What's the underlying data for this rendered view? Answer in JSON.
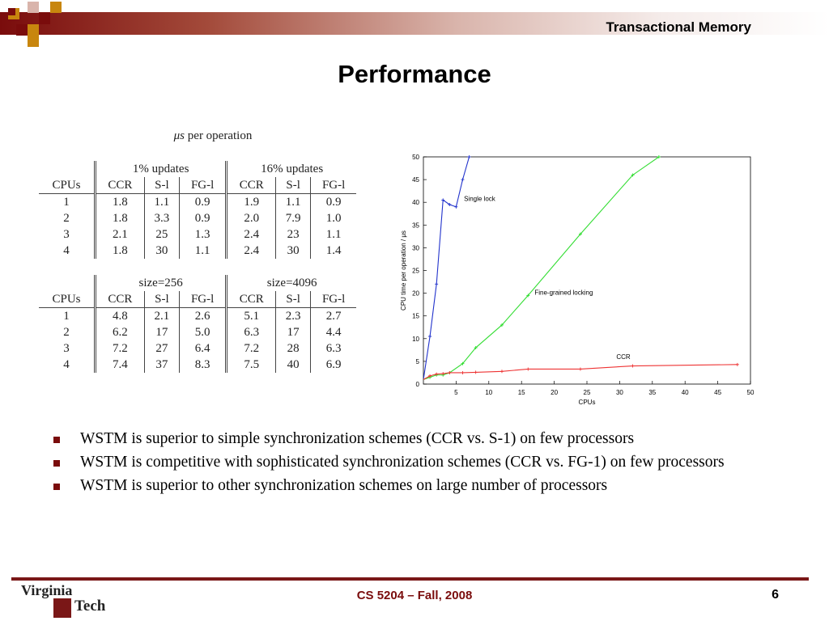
{
  "header": {
    "title": "Transactional Memory"
  },
  "slide": {
    "title": "Performance"
  },
  "table": {
    "caption_prefix": "μs",
    "caption_suffix": " per operation",
    "block1": {
      "group1": "1% updates",
      "group2": "16% updates",
      "columns": [
        "CPUs",
        "CCR",
        "S-l",
        "FG-l",
        "CCR",
        "S-l",
        "FG-l"
      ],
      "rows": [
        [
          "1",
          "1.8",
          "1.1",
          "0.9",
          "1.9",
          "1.1",
          "0.9"
        ],
        [
          "2",
          "1.8",
          "3.3",
          "0.9",
          "2.0",
          "7.9",
          "1.0"
        ],
        [
          "3",
          "2.1",
          "25",
          "1.3",
          "2.4",
          "23",
          "1.1"
        ],
        [
          "4",
          "1.8",
          "30",
          "1.1",
          "2.4",
          "30",
          "1.4"
        ]
      ]
    },
    "block2": {
      "group1": "size=256",
      "group2": "size=4096",
      "columns": [
        "CPUs",
        "CCR",
        "S-l",
        "FG-l",
        "CCR",
        "S-l",
        "FG-l"
      ],
      "rows": [
        [
          "1",
          "4.8",
          "2.1",
          "2.6",
          "5.1",
          "2.3",
          "2.7"
        ],
        [
          "2",
          "6.2",
          "17",
          "5.0",
          "6.3",
          "17",
          "4.4"
        ],
        [
          "3",
          "7.2",
          "27",
          "6.4",
          "7.2",
          "28",
          "6.3"
        ],
        [
          "4",
          "7.4",
          "37",
          "8.3",
          "7.5",
          "40",
          "6.9"
        ]
      ]
    }
  },
  "chart_data": {
    "type": "line",
    "xlabel": "CPUs",
    "ylabel": "CPU time per operation / μs",
    "xlim": [
      0,
      50
    ],
    "ylim": [
      0,
      50
    ],
    "xticks": [
      5,
      10,
      15,
      20,
      25,
      30,
      35,
      40,
      45,
      50
    ],
    "yticks": [
      0,
      5,
      10,
      15,
      20,
      25,
      30,
      35,
      40,
      45,
      50
    ],
    "series": [
      {
        "name": "Single lock",
        "color": "#2233cc",
        "x": [
          0,
          1,
          2,
          3,
          4,
          5,
          6,
          7
        ],
        "y": [
          1,
          10.5,
          22,
          40.5,
          39.5,
          39,
          45,
          50
        ]
      },
      {
        "name": "Fine-grained locking",
        "color": "#33dd33",
        "x": [
          0,
          1,
          2,
          3,
          4,
          6,
          8,
          12,
          16,
          24,
          32,
          36
        ],
        "y": [
          1,
          1.5,
          2,
          2,
          2.5,
          4.5,
          8,
          13,
          19.5,
          33,
          46,
          50
        ]
      },
      {
        "name": "CCR",
        "color": "#ee3333",
        "x": [
          0,
          1,
          2,
          3,
          4,
          6,
          8,
          12,
          16,
          24,
          32,
          48
        ],
        "y": [
          1,
          1.8,
          2.2,
          2.3,
          2.5,
          2.5,
          2.6,
          2.8,
          3.3,
          3.3,
          4,
          4.3
        ]
      }
    ]
  },
  "bullets": [
    "WSTM is superior to simple synchronization schemes (CCR vs. S-1) on few processors",
    "WSTM is competitive with sophisticated synchronization schemes (CCR vs. FG-1) on few processors",
    "WSTM is superior to other synchronization schemes on large number of processors"
  ],
  "footer": {
    "course": "CS 5204 – Fall, 2008",
    "page": "6",
    "logo_top": "Virginia",
    "logo_bottom": "Tech"
  },
  "colors": {
    "accent": "#7a0c0c",
    "gold": "#c8860e"
  }
}
